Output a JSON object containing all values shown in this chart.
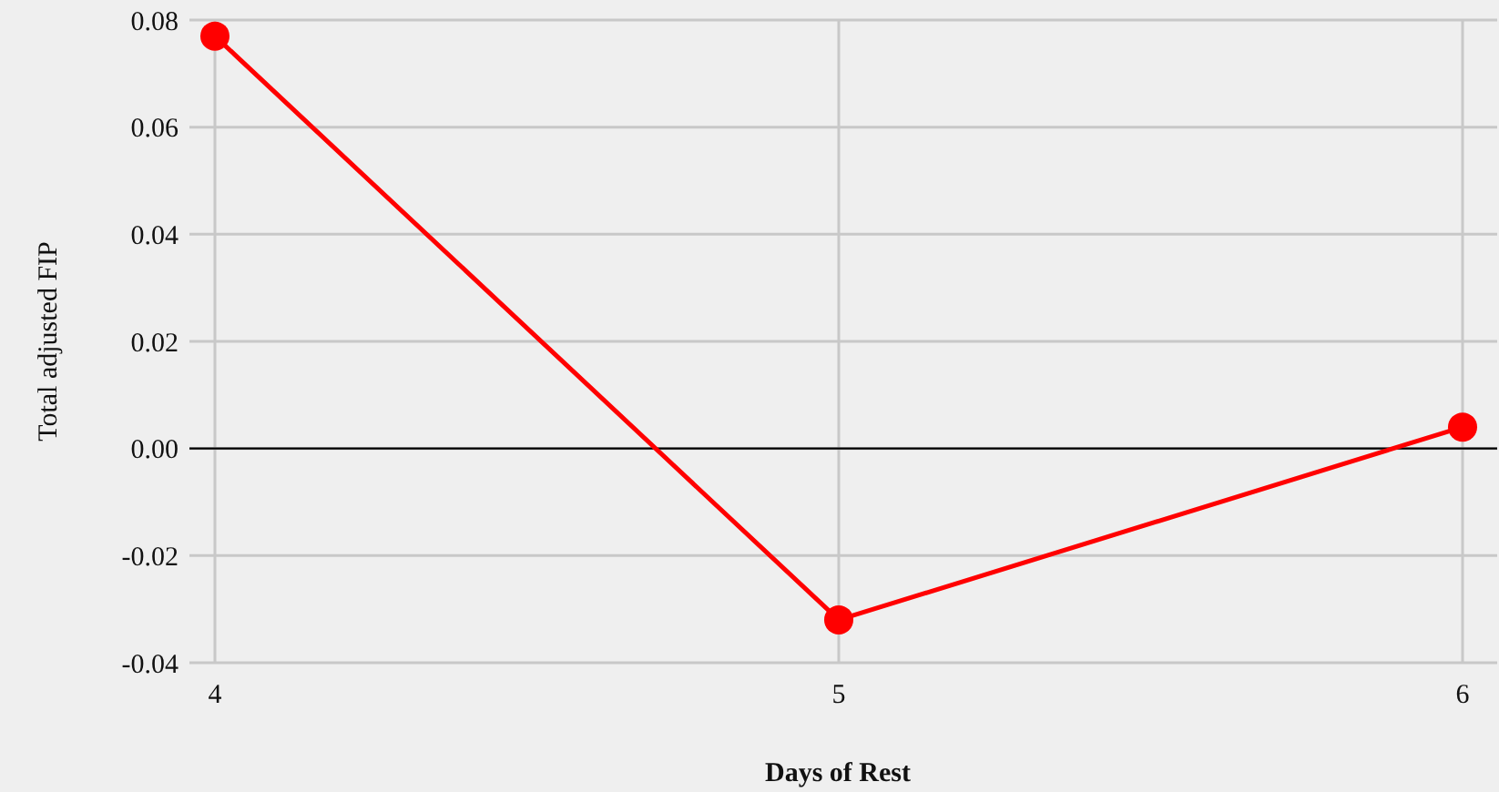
{
  "chart_data": {
    "type": "line",
    "xlabel": "Days of Rest",
    "ylabel": "Total adjusted FIP",
    "categories": [
      "4",
      "5",
      "6"
    ],
    "series": [
      {
        "color": "#ff0000",
        "values": [
          0.077,
          -0.032,
          0.004
        ]
      }
    ],
    "ylim": [
      -0.04,
      0.08
    ],
    "yticks": [
      {
        "value": -0.04,
        "label": "-0.04"
      },
      {
        "value": -0.02,
        "label": "-0.02"
      },
      {
        "value": 0,
        "label": "0.00"
      },
      {
        "value": 0.02,
        "label": "0.02"
      },
      {
        "value": 0.04,
        "label": "0.04"
      },
      {
        "value": 0.06,
        "label": "0.06"
      },
      {
        "value": 0.08,
        "label": "0.08"
      }
    ],
    "grid": true,
    "marker": "circle",
    "line_style": "solid",
    "ref_lines": [
      {
        "axis": "y",
        "value": 0,
        "color": "#000000"
      }
    ]
  }
}
